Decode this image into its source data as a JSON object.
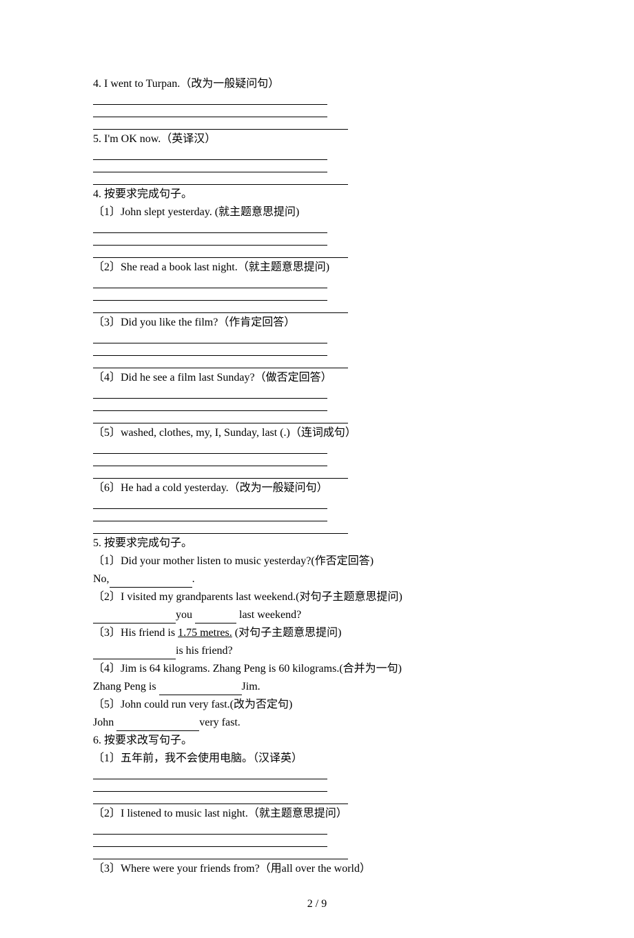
{
  "q4_text": "4. I went to Turpan.（改为一般疑问句）",
  "q5_text": "5. I'm OK now.（英译汉）",
  "section4": {
    "title": "4. 按要求完成句子。",
    "items": {
      "1": "〔1〕John slept yesterday. (就主题意思提问)",
      "2": "〔2〕She read a book last night.（就主题意思提问)",
      "3": "〔3〕Did you like the film?（作肯定回答）",
      "4": "〔4〕Did he see a film last Sunday?（做否定回答）",
      "5": "〔5〕washed, clothes, my, I, Sunday, last (.)（连词成句）",
      "6": "〔6〕He had a cold yesterday.（改为一般疑问句）"
    }
  },
  "section5": {
    "title": "5. 按要求完成句子。",
    "items": {
      "1": "〔1〕Did your mother listen to music yesterday?(作否定回答)",
      "1_answer_prefix": "No,",
      "1_answer_suffix": ".",
      "2": "〔2〕I visited my grandparents last weekend.(对句子主题意思提问)",
      "2_mid1": "you ",
      "2_mid2": " last weekend?",
      "3_prefix": "〔3〕His friend is ",
      "3_underlined": "1.75  metres.",
      "3_suffix": " (对句子主题意思提问)",
      "3_answer": "is his friend?",
      "4": "〔4〕Jim is 64 kilograms. Zhang Peng is 60 kilograms.(合并为一句)",
      "4_prefix": "Zhang Peng is ",
      "4_suffix": "Jim.",
      "5": "〔5〕John could run very fast.(改为否定句)",
      "5_prefix": "John ",
      "5_suffix": "very fast."
    }
  },
  "section6": {
    "title": "6. 按要求改写句子。",
    "items": {
      "1": "〔1〕五年前，我不会使用电脑。（汉译英）",
      "2": "〔2〕I listened to music last night.（就主题意思提问）",
      "3": "〔3〕Where were your friends from?（用all over the world）"
    }
  },
  "page_number": "2 / 9"
}
